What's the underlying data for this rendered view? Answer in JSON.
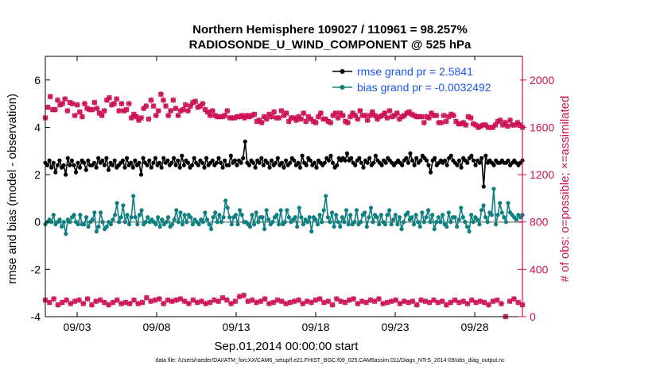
{
  "chart_data": {
    "type": "line",
    "title_line1": "Northern Hemisphere 109027 / 110961 = 98.257%",
    "title_line2": "RADIOSONDE_U_WIND_COMPONENT @ 525 hPa",
    "xlabel": "Sep.01,2014 00:00:00 start",
    "ylabel_left": "rmse and bias (model - observation)",
    "ylabel_right": "# of obs: o=possible; ×=assimilated",
    "x_range_days": [
      1,
      31
    ],
    "x_ticks": [
      {
        "day": 3,
        "label": "09/03"
      },
      {
        "day": 8,
        "label": "09/08"
      },
      {
        "day": 13,
        "label": "09/13"
      },
      {
        "day": 18,
        "label": "09/18"
      },
      {
        "day": 23,
        "label": "09/23"
      },
      {
        "day": 28,
        "label": "09/28"
      }
    ],
    "ylim_left": [
      -4,
      7
    ],
    "yticks_left": [
      "-4",
      "-2",
      "0",
      "2",
      "4",
      "6"
    ],
    "ylim_right": [
      0,
      2200
    ],
    "yticks_right": [
      "0",
      "400",
      "800",
      "1200",
      "1600",
      "2000"
    ],
    "legend": {
      "placement": "top-right",
      "entries": [
        {
          "label": "rmse grand pr = 2.5841",
          "color": "#000000"
        },
        {
          "label": "bias grand pr = -0.0032492",
          "color": "#0f7f7f"
        }
      ]
    },
    "colors": {
      "rmse": "#000000",
      "bias": "#0f7f7f",
      "obs": "#cc1155",
      "zero_line": "#b0b0b0",
      "text_blue": "#1a55ee"
    },
    "series": [
      {
        "name": "rmse",
        "axis": "left",
        "values": [
          2.5,
          2.4,
          2.6,
          2.3,
          2.5,
          2.1,
          2.4,
          2.6,
          2.3,
          2.4,
          2.0,
          2.7,
          2.4,
          2.6,
          2.4,
          2.1,
          2.5,
          2.3,
          2.6,
          2.5,
          2.2,
          2.6,
          2.4,
          2.4,
          2.5,
          2.3,
          2.7,
          2.5,
          2.6,
          2.4,
          2.7,
          2.2,
          2.5,
          2.4,
          2.6,
          2.3,
          2.4,
          2.5,
          2.6,
          2.3,
          2.7,
          2.4,
          2.5,
          2.3,
          2.6,
          2.4,
          2.5,
          2.0,
          2.7,
          2.5,
          2.4,
          2.6,
          2.3,
          2.5,
          2.7,
          2.4,
          2.5,
          2.3,
          2.7,
          2.5,
          2.6,
          2.4,
          2.5,
          2.7,
          2.4,
          2.6,
          2.3,
          2.8,
          2.4,
          2.6,
          2.5,
          2.3,
          2.4,
          2.7,
          2.5,
          2.4,
          2.6,
          2.5,
          2.3,
          2.7,
          2.4,
          2.5,
          2.6,
          2.4,
          2.5,
          2.7,
          2.5,
          2.3,
          2.6,
          2.4,
          2.4,
          2.8,
          2.5,
          2.6,
          2.4,
          2.6,
          2.5,
          2.7,
          3.4,
          2.5,
          2.4,
          2.6,
          2.5,
          2.3,
          2.6,
          2.5,
          2.7,
          2.4,
          2.6,
          2.5,
          2.3,
          2.6,
          2.4,
          2.5,
          2.7,
          2.4,
          2.5,
          2.3,
          2.6,
          2.4,
          2.5,
          2.7,
          2.6,
          2.4,
          2.5,
          2.3,
          2.8,
          2.5,
          2.4,
          2.7,
          2.6,
          2.4,
          2.5,
          2.3,
          2.6,
          2.5,
          2.4,
          2.5,
          2.7,
          2.6,
          2.8,
          2.5,
          2.3,
          2.4,
          2.7,
          2.6,
          2.7,
          2.6,
          2.9,
          2.6,
          2.7,
          2.5,
          2.4,
          2.6,
          2.7,
          2.5,
          2.3,
          2.6,
          2.5,
          2.7,
          2.4,
          2.5,
          2.8,
          2.6,
          2.5,
          2.4,
          2.6,
          2.5,
          2.7,
          2.6,
          2.5,
          2.4,
          2.5,
          2.6,
          2.5,
          2.4,
          2.6,
          2.7,
          2.5,
          2.9,
          2.6,
          2.4,
          2.7,
          2.5,
          2.6,
          2.8,
          2.7,
          2.6,
          2.4,
          2.1,
          2.6,
          2.7,
          2.4,
          2.5,
          2.6,
          2.5,
          2.6,
          2.4,
          2.7,
          2.8,
          2.6,
          2.5,
          2.4,
          2.6,
          2.3,
          2.7,
          2.6,
          2.5,
          2.7,
          2.8,
          2.6,
          2.4,
          2.6,
          2.5,
          2.7,
          1.5,
          2.8,
          2.5,
          2.6,
          2.5,
          2.4,
          2.6,
          2.5,
          2.5,
          2.6,
          2.5,
          2.5,
          2.6,
          2.4,
          2.5,
          2.6,
          2.5,
          2.4,
          2.5,
          2.6
        ]
      },
      {
        "name": "bias",
        "axis": "left",
        "values": [
          -0.1,
          0.0,
          0.1,
          0.0,
          0.3,
          -0.1,
          0.0,
          0.1,
          -0.2,
          0.0,
          -0.5,
          0.1,
          0.0,
          0.2,
          0.3,
          0.0,
          -0.1,
          0.3,
          -0.1,
          -0.1,
          0.2,
          -0.2,
          0.0,
          0.1,
          0.4,
          -0.4,
          -0.2,
          0.4,
          0.0,
          -0.3,
          -0.2,
          0.0,
          -0.1,
          0.1,
          0.3,
          0.8,
          0.0,
          0.2,
          0.7,
          0.0,
          0.3,
          -0.1,
          0.2,
          1.1,
          0.2,
          -0.1,
          0.3,
          0.5,
          -0.1,
          0.0,
          0.2,
          0.0,
          0.1,
          0.0,
          -0.1,
          0.2,
          -0.2,
          0.1,
          -0.1,
          0.0,
          0.2,
          -0.2,
          -0.1,
          0.1,
          0.5,
          0.0,
          0.4,
          -0.1,
          0.3,
          0.0,
          0.3,
          0.2,
          -0.1,
          0.1,
          0.0,
          -0.1,
          0.1,
          0.0,
          0.4,
          0.1,
          -0.1,
          -0.3,
          0.2,
          0.4,
          0.0,
          0.3,
          0.0,
          0.2,
          0.9,
          0.6,
          0.2,
          -0.1,
          0.2,
          0.3,
          -0.1,
          0.5,
          0.3,
          0.0,
          0.0,
          -0.1,
          -0.2,
          0.3,
          -0.1,
          0.4,
          0.0,
          0.2,
          0.2,
          -0.3,
          0.5,
          0.1,
          -0.1,
          0.0,
          0.2,
          0.3,
          -0.1,
          0.5,
          -0.1,
          0.0,
          0.5,
          0.2,
          0.0,
          0.1,
          0.2,
          -0.2,
          0.6,
          0.2,
          -0.1,
          0.1,
          0.0,
          0.2,
          -0.4,
          0.2,
          0.1,
          -0.1,
          0.3,
          0.0,
          0.5,
          1.1,
          0.2,
          0.0,
          0.4,
          -0.2,
          0.3,
          0.0,
          -0.2,
          0.2,
          0.0,
          0.5,
          -0.1,
          0.3,
          -0.1,
          0.0,
          0.5,
          -0.1,
          0.0,
          0.3,
          0.4,
          -0.2,
          0.2,
          0.6,
          0.0,
          0.3,
          0.2,
          -0.1,
          0.3,
          0.0,
          -0.1,
          0.3,
          0.5,
          -0.1,
          0.1,
          0.3,
          -0.1,
          0.2,
          -0.3,
          0.0,
          0.3,
          0.4,
          0.1,
          0.2,
          -0.1,
          0.3,
          0.0,
          -0.2,
          0.4,
          0.0,
          0.2,
          0.5,
          0.0,
          0.3,
          -0.3,
          0.0,
          0.2,
          0.0,
          0.3,
          -0.1,
          -0.2,
          0.4,
          0.0,
          0.2,
          0.2,
          -0.2,
          0.1,
          0.6,
          0.2,
          0.0,
          -0.2,
          -0.4,
          0.3,
          0.0,
          0.2,
          0.1,
          -0.1,
          0.5,
          0.7,
          0.2,
          0.0,
          0.4,
          0.3,
          1.4,
          -0.1,
          0.3,
          0.8,
          0.4,
          0.2,
          0.0,
          0.8,
          0.4,
          0.3,
          0.2,
          0.1,
          0.3,
          0.2,
          0.3
        ]
      },
      {
        "name": "obs_possible_upper",
        "axis": "right",
        "values": [
          1680,
          1770,
          1860,
          1750,
          1750,
          1830,
          1790,
          1800,
          1840,
          1740,
          1810,
          1800,
          1700,
          1790,
          1730,
          1690,
          1800,
          1760,
          1750,
          1750,
          1810,
          1760,
          1720,
          1700,
          1740,
          1830,
          1850,
          1790,
          1800,
          1840,
          1740,
          1800,
          1740,
          1750,
          1800,
          1680,
          1710,
          1690,
          1660,
          1680,
          1760,
          1780,
          1670,
          1830,
          1780,
          1700,
          1740,
          1880,
          1830,
          1780,
          1700,
          1740,
          1830,
          1760,
          1700,
          1740,
          1750,
          1790,
          1740,
          1780,
          1810,
          1820,
          1770,
          1780,
          1800,
          1750,
          1730,
          1700,
          1740,
          1700,
          1690,
          1690,
          1690,
          1700,
          1740,
          1680,
          1680,
          1680,
          1690,
          1690,
          1700,
          1680,
          1700,
          1690,
          1700,
          1710,
          1650,
          1660,
          1640,
          1690,
          1670,
          1710,
          1690,
          1730,
          1680,
          1680,
          1740,
          1700,
          1720,
          1650,
          1680,
          1680,
          1660,
          1690,
          1670,
          1720,
          1650,
          1690,
          1670,
          1650,
          1640,
          1690,
          1720,
          1670,
          1670,
          1650,
          1640,
          1700,
          1720,
          1680,
          1720,
          1700,
          1650,
          1640,
          1690,
          1720,
          1700,
          1670,
          1740,
          1700,
          1700,
          1660,
          1700,
          1730,
          1700,
          1670,
          1690,
          1700,
          1720,
          1680,
          1740,
          1690,
          1700,
          1720,
          1670,
          1690,
          1700,
          1720,
          1730,
          1710,
          1700,
          1690,
          1690,
          1690,
          1640,
          1690,
          1680,
          1720,
          1700,
          1700,
          1640,
          1640,
          1700,
          1650,
          1690,
          1710,
          1700,
          1650,
          1630,
          1630,
          1640,
          1620,
          1690,
          1680,
          1630,
          1620,
          1600,
          1610,
          1620,
          1620,
          1600,
          1600,
          1600,
          1620,
          1650,
          1660,
          1620,
          1640,
          1610,
          1660,
          1620,
          1620,
          1640,
          1620,
          1600
        ]
      },
      {
        "name": "obs_assimilated_lower",
        "axis": "right",
        "values": [
          140,
          120,
          150,
          100,
          120,
          140,
          110,
          130,
          140,
          110,
          150,
          100,
          130,
          140,
          120,
          100,
          120,
          140,
          110,
          120,
          110,
          140,
          110,
          120,
          160,
          130,
          140,
          150,
          110,
          140,
          130,
          140,
          150,
          130,
          110,
          140,
          120,
          130,
          110,
          120,
          140,
          130,
          160,
          140,
          110,
          130,
          170,
          180,
          130,
          140,
          120,
          130,
          150,
          110,
          120,
          140,
          130,
          110,
          120,
          130,
          140,
          110,
          130,
          120,
          140,
          150,
          120,
          130,
          100,
          150,
          130,
          120,
          140,
          150,
          110,
          130,
          120,
          140,
          130,
          150,
          110,
          120,
          130,
          140,
          110,
          130,
          120,
          130,
          100,
          140,
          130,
          120,
          140,
          120,
          130,
          100,
          120,
          140,
          120,
          130,
          110,
          140,
          120,
          130,
          120,
          100,
          130,
          140,
          110,
          0,
          130,
          150,
          120,
          100
        ]
      }
    ],
    "footnote": "data file: /Users/raeder/DAI/ATM_forcXX/CAM6_setup/f.e21.FHIST_BGC.f09_025.CAM6assim.011/Diags_NTrS_2014-09/obs_diag_output.nc"
  }
}
